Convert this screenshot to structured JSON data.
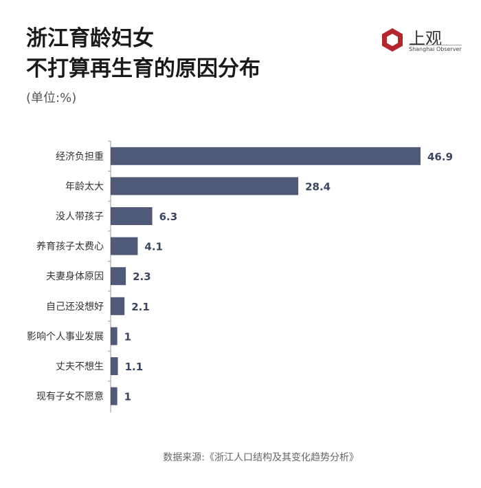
{
  "title_line1": "浙江育龄妇女",
  "title_line2": "不打算再生育的原因分布",
  "unit": "(单位:%)",
  "logo": {
    "name": "上观",
    "sub": "Shanghai Observer"
  },
  "source": "数据来源:《浙江人口结构及其变化趋势分析》",
  "chart_data": {
    "type": "bar",
    "orientation": "horizontal",
    "title": "浙江育龄妇女不打算再生育的原因分布",
    "ylabel": "(单位:%)",
    "categories": [
      "经济负担重",
      "年龄太大",
      "没人带孩子",
      "养育孩子太费心",
      "夫妻身体原因",
      "自己还没想好",
      "影响个人事业发展",
      "丈夫不想生",
      "现有子女不愿意"
    ],
    "values": [
      46.9,
      28.4,
      6.3,
      4.1,
      2.3,
      2.1,
      1,
      1.1,
      1
    ],
    "labels": [
      "46.9",
      "28.4",
      "6.3",
      "4.1",
      "2.3",
      "2.1",
      "1",
      "1.1",
      "1"
    ],
    "xlim": [
      0,
      46.9
    ],
    "bar_color": "#4f5a78",
    "grid": false
  }
}
